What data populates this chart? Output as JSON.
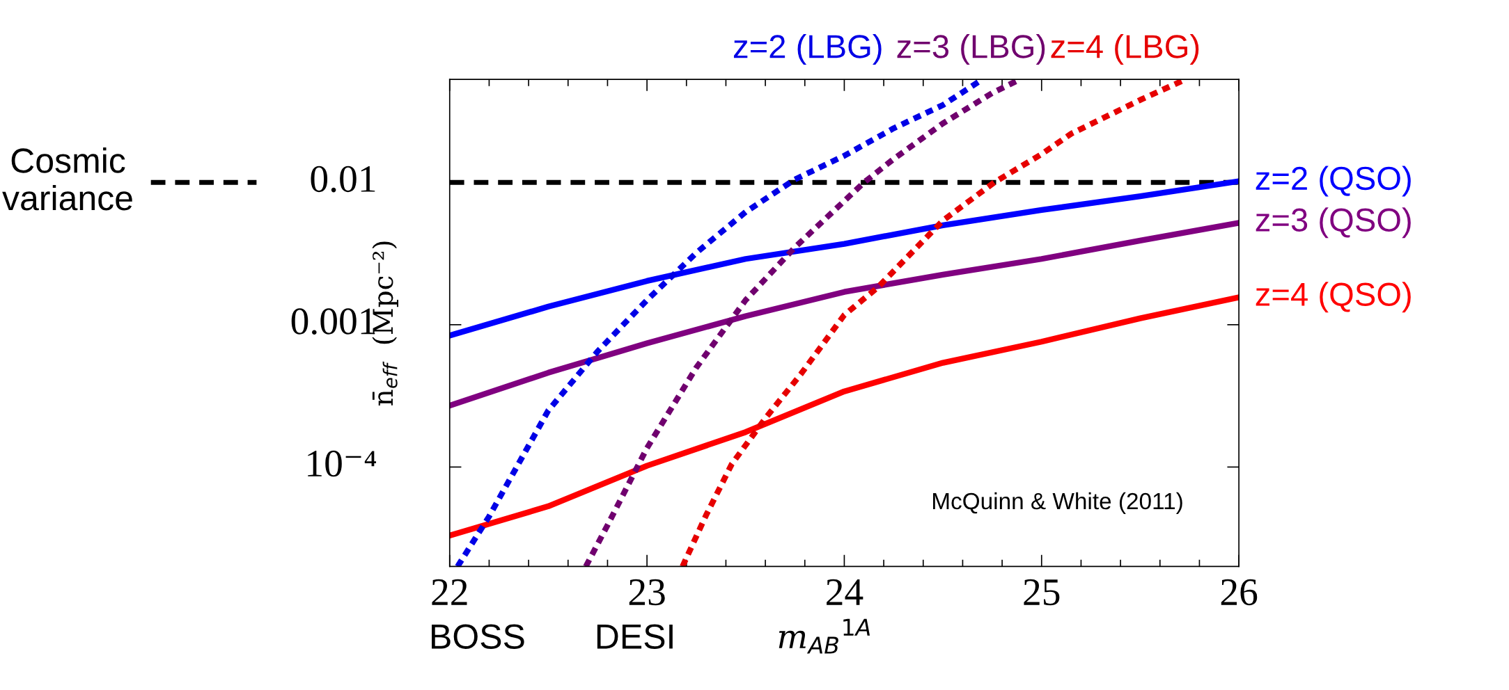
{
  "chart_data": {
    "type": "line",
    "xlabel": "m$_{AB}$$^{1A}$",
    "ylabel": "n̄$_{eff}$  (Mpc⁻²)",
    "log": "y",
    "xlim": [
      22,
      26
    ],
    "xticks": [
      22,
      23,
      24,
      25,
      26
    ],
    "ylim": [
      2e-05,
      0.053
    ],
    "yticks": [
      {
        "value": 0.0001,
        "label": "10⁻⁴"
      },
      0.001,
      0.01
    ],
    "grid": false,
    "legend": false,
    "ref_lines": [
      {
        "axis": "y",
        "value": 0.01,
        "label": "Cosmic\nvariance",
        "color": "#000000",
        "line_style": "dashed"
      }
    ],
    "annotations": [
      "McQuinn & White (2011)",
      "BOSS",
      "DESI"
    ],
    "series": [
      {
        "name": "z=2 (QSO)",
        "color": "#0000ff",
        "line_style": "solid",
        "x": [
          22,
          22.5,
          23,
          23.5,
          24,
          24.5,
          25,
          25.5,
          26
        ],
        "values": [
          0.00084,
          0.00134,
          0.00203,
          0.0029,
          0.0037,
          0.005,
          0.0064,
          0.008,
          0.0102
        ]
      },
      {
        "name": "z=3 (QSO)",
        "color": "#800080",
        "line_style": "solid",
        "x": [
          22,
          22.5,
          23,
          23.5,
          24,
          24.5,
          25,
          25.5,
          26
        ],
        "values": [
          0.00027,
          0.00046,
          0.00074,
          0.00115,
          0.0017,
          0.00225,
          0.0029,
          0.0039,
          0.0052
        ]
      },
      {
        "name": "z=4 (QSO)",
        "color": "#ff0000",
        "line_style": "solid",
        "x": [
          22,
          22.5,
          23,
          23.5,
          24,
          24.5,
          25,
          25.5,
          26
        ],
        "values": [
          3.3e-05,
          5.3e-05,
          0.000102,
          0.000176,
          0.00034,
          0.00054,
          0.00076,
          0.00111,
          0.00156
        ]
      },
      {
        "name": "z=2 (LBG)",
        "color": "#0000e6",
        "line_style": "dashed",
        "x": [
          22.04,
          22.2,
          22.5,
          22.75,
          23,
          23.25,
          23.5,
          23.75,
          24,
          24.25,
          24.5,
          24.7
        ],
        "values": [
          2e-05,
          4.5e-05,
          0.00025,
          0.00065,
          0.00149,
          0.0032,
          0.0062,
          0.0105,
          0.0154,
          0.024,
          0.035,
          0.053
        ]
      },
      {
        "name": "z=3 (LBG)",
        "color": "#70006e",
        "line_style": "dashed",
        "x": [
          22.69,
          22.8,
          23,
          23.25,
          23.5,
          23.75,
          24,
          24.1,
          24.25,
          24.5,
          24.75,
          24.89
        ],
        "values": [
          2e-05,
          3.9e-05,
          0.000136,
          0.0005,
          0.00149,
          0.0035,
          0.0074,
          0.01,
          0.0146,
          0.026,
          0.0425,
          0.053
        ]
      },
      {
        "name": "z=4 (LBG)",
        "color": "#e60000",
        "line_style": "dashed",
        "x": [
          23.18,
          23.3,
          23.43,
          23.6,
          23.78,
          24,
          24.17,
          24.5,
          24.76,
          25,
          25.15,
          25.5,
          25.73
        ],
        "values": [
          2e-05,
          4.6e-05,
          0.000105,
          0.00022,
          0.00045,
          0.00117,
          0.00183,
          0.0054,
          0.01,
          0.0158,
          0.022,
          0.038,
          0.053
        ]
      }
    ]
  }
}
